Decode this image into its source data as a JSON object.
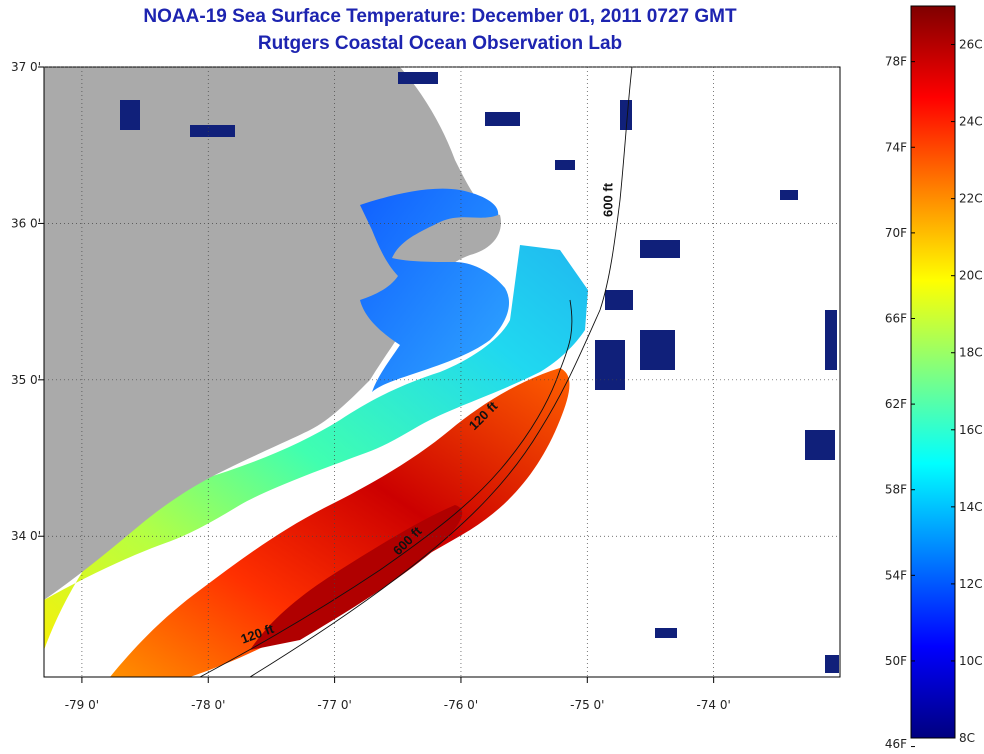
{
  "title_line1": "NOAA-19 Sea Surface Temperature:  December 01, 2011 0727 GMT",
  "title_line2": "Rutgers Coastal Ocean Observation Lab",
  "map": {
    "lon_range": [
      -79.3,
      -73.0
    ],
    "lat_range": [
      33.1,
      37.0
    ],
    "lon_ticks": [
      {
        "value": -79,
        "label": "-79 0'"
      },
      {
        "value": -78,
        "label": "-78 0'"
      },
      {
        "value": -77,
        "label": "-77 0'"
      },
      {
        "value": -76,
        "label": "-76 0'"
      },
      {
        "value": -75,
        "label": "-75 0'"
      },
      {
        "value": -74,
        "label": "-74 0'"
      }
    ],
    "lat_ticks": [
      {
        "value": 37,
        "label": "37 0'"
      },
      {
        "value": 36,
        "label": "36 0'"
      },
      {
        "value": 35,
        "label": "35 0'"
      },
      {
        "value": 34,
        "label": "34 0'"
      }
    ],
    "grid": "dotted",
    "contour_labels": [
      {
        "text": "600 ft",
        "lon": -74.8,
        "lat": 36.15
      },
      {
        "text": "120 ft",
        "lon": -75.8,
        "lat": 34.75
      },
      {
        "text": "600 ft",
        "lon": -76.4,
        "lat": 33.95
      },
      {
        "text": "120 ft",
        "lon": -77.6,
        "lat": 33.35
      }
    ],
    "colors": {
      "land": "#aaaaaa",
      "no_data": "#ffffff",
      "contour": "#111111"
    }
  },
  "colorbar": {
    "min_c": 8,
    "max_c": 27,
    "celsius_labels": [
      "26C",
      "24C",
      "22C",
      "20C",
      "18C",
      "16C",
      "14C",
      "12C",
      "10C",
      "8C"
    ],
    "celsius_values": [
      26,
      24,
      22,
      20,
      18,
      16,
      14,
      12,
      10,
      8
    ],
    "fahrenheit_labels": [
      "78F",
      "74F",
      "70F",
      "66F",
      "62F",
      "58F",
      "54F",
      "50F",
      "46F"
    ],
    "fahrenheit_values": [
      78,
      74,
      70,
      66,
      62,
      58,
      54,
      50,
      46
    ],
    "colormap": [
      "#00007f",
      "#0000ff",
      "#0080ff",
      "#00ffff",
      "#80ff80",
      "#ffff00",
      "#ff8000",
      "#ff0000",
      "#7f0000"
    ]
  }
}
